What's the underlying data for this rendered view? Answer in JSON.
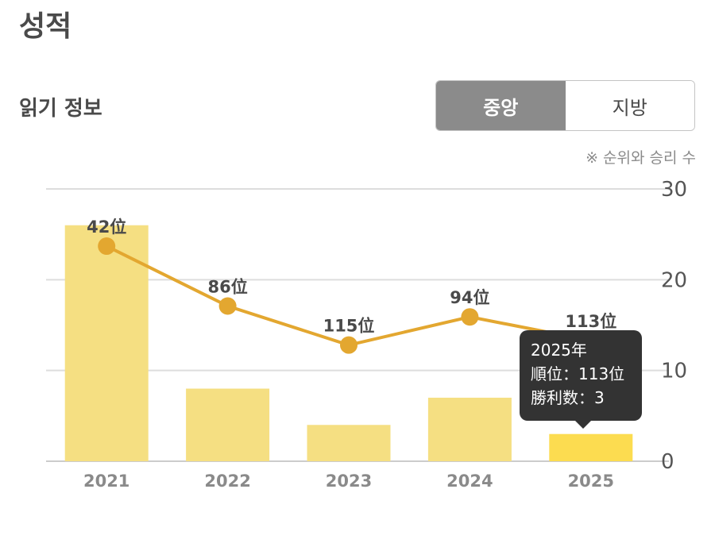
{
  "page": {
    "title": "성적"
  },
  "section": {
    "title": "읽기 정보"
  },
  "segment": {
    "options": [
      {
        "label": "중앙",
        "active": true
      },
      {
        "label": "지방",
        "active": false
      }
    ]
  },
  "note": "※ 순위와 승리 수",
  "tooltip": {
    "year_line": "2025年",
    "rank_line": "順位：113位",
    "wins_line": "勝利数：3"
  },
  "colors": {
    "bar": "#f5df82",
    "bar_highlight": "#fcdc50",
    "line": "#e3a730",
    "grid": "#dddddd",
    "label": "#4a4a4a",
    "axis_label": "#555555"
  },
  "chart_data": {
    "type": "bar",
    "categories": [
      "2021",
      "2022",
      "2023",
      "2024",
      "2025"
    ],
    "values": [
      26,
      8,
      4,
      7,
      3
    ],
    "ylim": [
      0,
      30
    ],
    "yticks": [
      0,
      10,
      20,
      30
    ],
    "y_axis_side": "right",
    "grid": true,
    "highlight_index": 4,
    "line_series": {
      "values": [
        23.7,
        17.1,
        12.8,
        15.9,
        13.3
      ],
      "labels": [
        "42位",
        "86位",
        "115位",
        "94位",
        "113位"
      ]
    }
  }
}
